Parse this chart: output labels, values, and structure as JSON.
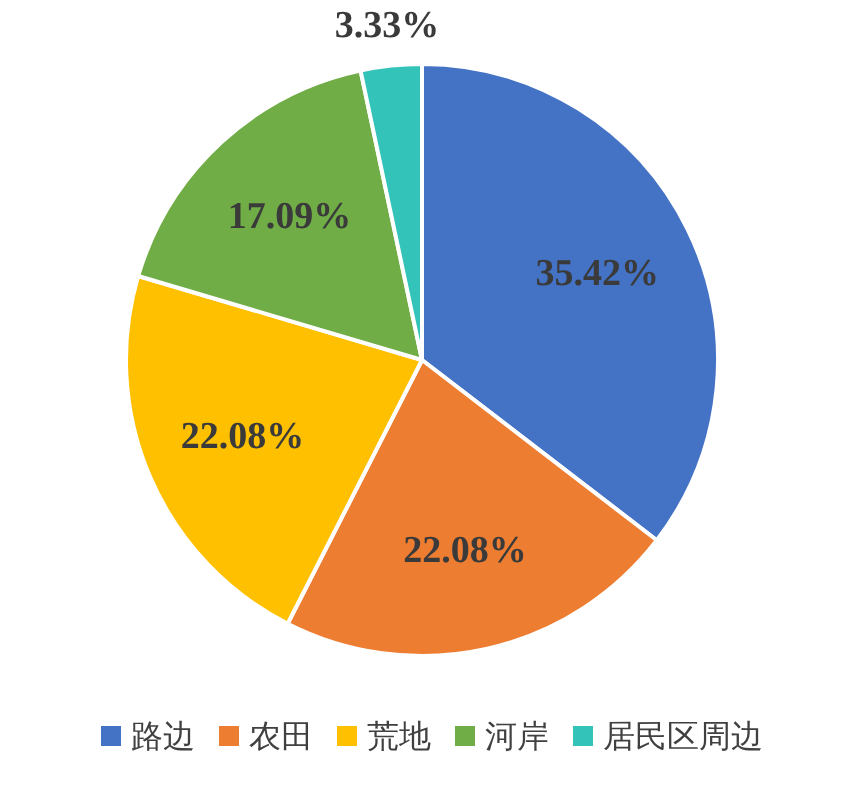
{
  "chart_data": {
    "type": "pie",
    "categories": [
      "路边",
      "农田",
      "荒地",
      "河岸",
      "居民区周边"
    ],
    "values": [
      35.42,
      22.08,
      22.08,
      17.09,
      3.33
    ],
    "value_labels": [
      "35.42%",
      "22.08%",
      "22.08%",
      "17.09%",
      "3.33%"
    ],
    "colors": [
      "#4472c4",
      "#ed7d31",
      "#ffc000",
      "#70ad47",
      "#33c3b8"
    ],
    "legend": "bottom"
  }
}
